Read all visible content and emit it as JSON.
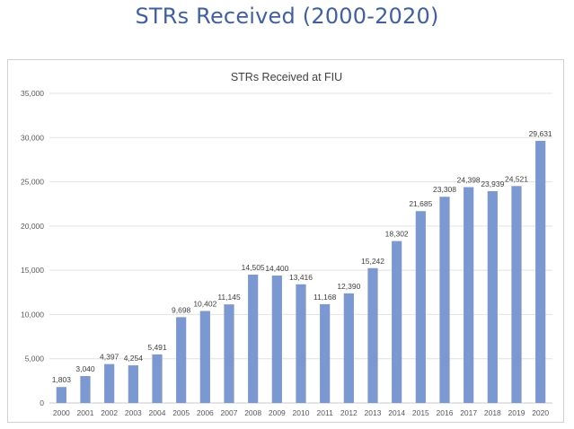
{
  "slide": {
    "title": "STRs Received (2000-2020)"
  },
  "colors": {
    "title": "#3f5fa8",
    "bar": "#7b98d3",
    "grid": "#e2e2e2",
    "axis": "#c8c8c8"
  },
  "chart_data": {
    "type": "bar",
    "title": "STRs Received at FIU",
    "xlabel": "",
    "ylabel": "",
    "categories": [
      "2000",
      "2001",
      "2002",
      "2003",
      "2004",
      "2005",
      "2006",
      "2007",
      "2008",
      "2009",
      "2010",
      "2011",
      "2012",
      "2013",
      "2014",
      "2015",
      "2016",
      "2017",
      "2018",
      "2019",
      "2020"
    ],
    "values": [
      1803,
      3040,
      4397,
      4254,
      5491,
      9698,
      10402,
      11145,
      14505,
      14400,
      13416,
      11168,
      12390,
      15242,
      18302,
      21685,
      23308,
      24398,
      23939,
      24521,
      29631
    ],
    "data_labels": [
      "1,803",
      "3,040",
      "4,397",
      "4,254",
      "5,491",
      "9,698",
      "10,402",
      "11,145",
      "14,505",
      "14,400",
      "13,416",
      "11,168",
      "12,390",
      "15,242",
      "18,302",
      "21,685",
      "23,308",
      "24,398",
      "23,939",
      "24,521",
      "29,631"
    ],
    "ylim": [
      0,
      35000
    ],
    "yticks": [
      0,
      5000,
      10000,
      15000,
      20000,
      25000,
      30000,
      35000
    ],
    "ytick_labels": [
      "0",
      "5,000",
      "10,000",
      "15,000",
      "20,000",
      "25,000",
      "30,000",
      "35,000"
    ],
    "grid": true,
    "legend": false
  }
}
